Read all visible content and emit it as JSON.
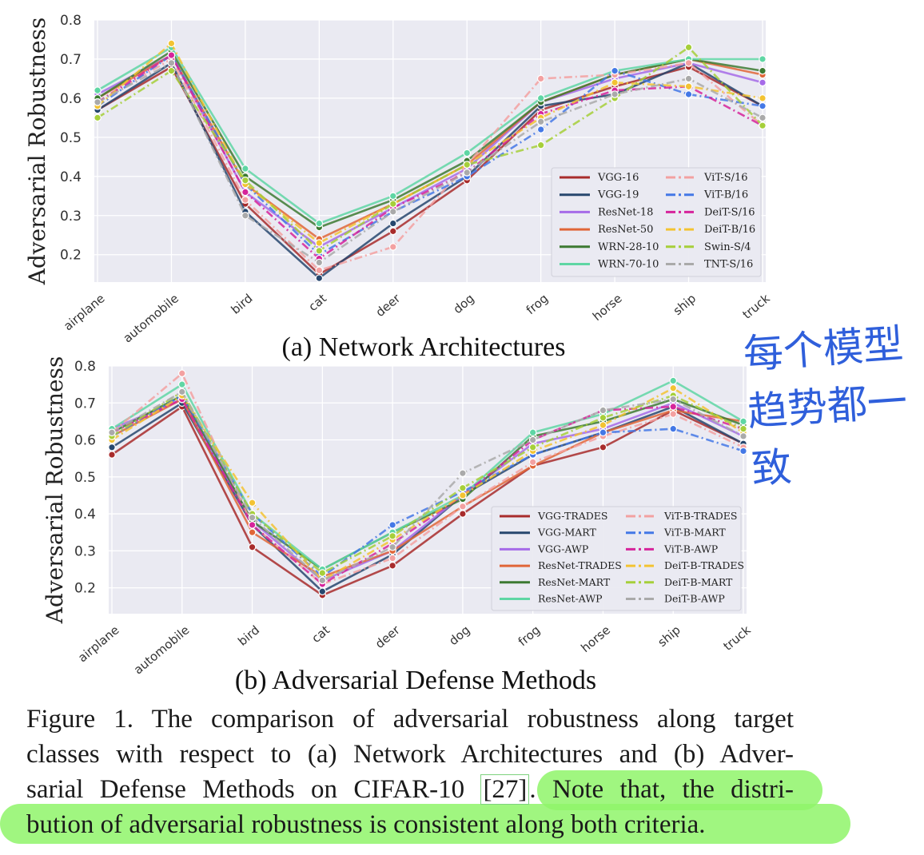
{
  "chart_data": [
    {
      "type": "line",
      "subcaption": "(a) Network Architectures",
      "ylabel": "Adversarial Robustness",
      "ylim": [
        0.13,
        0.8
      ],
      "yticks": [
        0.2,
        0.3,
        0.4,
        0.5,
        0.6,
        0.7,
        0.8
      ],
      "ytick_labels": [
        "0.2",
        "0.3",
        "0.4",
        "0.5",
        "0.6",
        "0.7",
        "0.8"
      ],
      "categories": [
        "airplane",
        "automobile",
        "bird",
        "cat",
        "deer",
        "dog",
        "frog",
        "horse",
        "ship",
        "truck"
      ],
      "legend_position": "lower-right",
      "series": [
        {
          "name": "VGG-16",
          "color": "#a82c2c",
          "dash": "solid",
          "values": [
            0.57,
            0.68,
            0.33,
            0.15,
            0.26,
            0.39,
            0.57,
            0.63,
            0.68,
            0.58
          ]
        },
        {
          "name": "VGG-19",
          "color": "#27476e",
          "dash": "solid",
          "values": [
            0.57,
            0.69,
            0.31,
            0.14,
            0.28,
            0.4,
            0.58,
            0.61,
            0.69,
            0.58
          ]
        },
        {
          "name": "ResNet-18",
          "color": "#a66be8",
          "dash": "solid",
          "values": [
            0.61,
            0.71,
            0.36,
            0.22,
            0.32,
            0.42,
            0.59,
            0.65,
            0.69,
            0.64
          ]
        },
        {
          "name": "ResNet-50",
          "color": "#e06638",
          "dash": "solid",
          "values": [
            0.6,
            0.71,
            0.38,
            0.24,
            0.33,
            0.43,
            0.59,
            0.66,
            0.7,
            0.66
          ]
        },
        {
          "name": "WRN-28-10",
          "color": "#3d7a32",
          "dash": "solid",
          "values": [
            0.6,
            0.72,
            0.4,
            0.27,
            0.34,
            0.44,
            0.59,
            0.66,
            0.7,
            0.67
          ]
        },
        {
          "name": "WRN-70-10",
          "color": "#5fd6a4",
          "dash": "solid",
          "values": [
            0.62,
            0.73,
            0.42,
            0.28,
            0.35,
            0.46,
            0.6,
            0.67,
            0.7,
            0.7
          ]
        },
        {
          "name": "ViT-S/16",
          "color": "#f3a1a1",
          "dash": "dashdot",
          "values": [
            0.59,
            0.7,
            0.34,
            0.16,
            0.22,
            0.43,
            0.65,
            0.66,
            0.69,
            0.53
          ]
        },
        {
          "name": "ViT-B/16",
          "color": "#4478e6",
          "dash": "dashdot",
          "values": [
            0.58,
            0.71,
            0.38,
            0.2,
            0.31,
            0.4,
            0.52,
            0.67,
            0.61,
            0.58
          ]
        },
        {
          "name": "DeiT-S/16",
          "color": "#d6249b",
          "dash": "dashdot",
          "values": [
            0.59,
            0.71,
            0.36,
            0.19,
            0.32,
            0.41,
            0.56,
            0.62,
            0.63,
            0.53
          ]
        },
        {
          "name": "DeiT-B/16",
          "color": "#f3c332",
          "dash": "dashdot",
          "values": [
            0.58,
            0.74,
            0.38,
            0.23,
            0.33,
            0.43,
            0.55,
            0.64,
            0.63,
            0.6
          ]
        },
        {
          "name": "Swin-S/4",
          "color": "#a6cf3a",
          "dash": "dashdot",
          "values": [
            0.55,
            0.67,
            0.39,
            0.21,
            0.33,
            0.43,
            0.48,
            0.6,
            0.73,
            0.53
          ]
        },
        {
          "name": "TNT-S/16",
          "color": "#aaaaaa",
          "dash": "dashdot",
          "values": [
            0.59,
            0.69,
            0.3,
            0.18,
            0.31,
            0.41,
            0.54,
            0.61,
            0.65,
            0.55
          ]
        }
      ]
    },
    {
      "type": "line",
      "subcaption": "(b) Adversarial Defense Methods",
      "ylabel": "Adversarial Robustness",
      "ylim": [
        0.13,
        0.8
      ],
      "yticks": [
        0.2,
        0.3,
        0.4,
        0.5,
        0.6,
        0.7,
        0.8
      ],
      "ytick_labels": [
        "0.2",
        "0.3",
        "0.4",
        "0.5",
        "0.6",
        "0.7",
        "0.8"
      ],
      "categories": [
        "airplane",
        "automobile",
        "bird",
        "cat",
        "deer",
        "dog",
        "frog",
        "horse",
        "ship",
        "truck"
      ],
      "legend_position": "lower-right",
      "series": [
        {
          "name": "VGG-TRADES",
          "color": "#a82c2c",
          "dash": "solid",
          "values": [
            0.56,
            0.69,
            0.31,
            0.18,
            0.26,
            0.4,
            0.53,
            0.58,
            0.68,
            0.59
          ]
        },
        {
          "name": "VGG-MART",
          "color": "#27476e",
          "dash": "solid",
          "values": [
            0.58,
            0.7,
            0.37,
            0.19,
            0.29,
            0.45,
            0.56,
            0.62,
            0.69,
            0.59
          ]
        },
        {
          "name": "VGG-AWP",
          "color": "#a66be8",
          "dash": "solid",
          "values": [
            0.63,
            0.71,
            0.38,
            0.22,
            0.3,
            0.45,
            0.59,
            0.63,
            0.7,
            0.61
          ]
        },
        {
          "name": "ResNet-TRADES",
          "color": "#e06638",
          "dash": "solid",
          "values": [
            0.61,
            0.71,
            0.35,
            0.23,
            0.3,
            0.42,
            0.53,
            0.62,
            0.68,
            0.65
          ]
        },
        {
          "name": "ResNet-MART",
          "color": "#3d7a32",
          "dash": "solid",
          "values": [
            0.62,
            0.72,
            0.38,
            0.25,
            0.35,
            0.44,
            0.61,
            0.65,
            0.71,
            0.64
          ]
        },
        {
          "name": "ResNet-AWP",
          "color": "#5fd6a4",
          "dash": "solid",
          "values": [
            0.63,
            0.75,
            0.4,
            0.25,
            0.35,
            0.45,
            0.62,
            0.67,
            0.76,
            0.65
          ]
        },
        {
          "name": "ViT-B-TRADES",
          "color": "#f3a1a1",
          "dash": "dashdot",
          "values": [
            0.62,
            0.78,
            0.37,
            0.21,
            0.28,
            0.42,
            0.54,
            0.61,
            0.67,
            0.58
          ]
        },
        {
          "name": "ViT-B-MART",
          "color": "#4478e6",
          "dash": "dashdot",
          "values": [
            0.61,
            0.72,
            0.4,
            0.23,
            0.37,
            0.46,
            0.56,
            0.62,
            0.63,
            0.57
          ]
        },
        {
          "name": "ViT-B-AWP",
          "color": "#d6249b",
          "dash": "dashdot",
          "values": [
            0.62,
            0.71,
            0.37,
            0.21,
            0.32,
            0.45,
            0.6,
            0.68,
            0.69,
            0.63
          ]
        },
        {
          "name": "DeiT-B-TRADES",
          "color": "#f3c332",
          "dash": "dashdot",
          "values": [
            0.6,
            0.72,
            0.43,
            0.22,
            0.33,
            0.45,
            0.57,
            0.64,
            0.74,
            0.62
          ]
        },
        {
          "name": "DeiT-B-MART",
          "color": "#a6cf3a",
          "dash": "dashdot",
          "values": [
            0.61,
            0.73,
            0.4,
            0.24,
            0.34,
            0.47,
            0.58,
            0.66,
            0.72,
            0.63
          ]
        },
        {
          "name": "DeiT-B-AWP",
          "color": "#aaaaaa",
          "dash": "dashdot",
          "values": [
            0.62,
            0.73,
            0.39,
            0.22,
            0.31,
            0.51,
            0.6,
            0.68,
            0.71,
            0.61
          ]
        }
      ]
    }
  ],
  "caption": {
    "line1": "Figure 1. The comparison of adversarial robustness along target",
    "line2": "classes with respect to (a) Network Architectures and (b) Adver-",
    "line3_prefix": "sarial Defense Methods on CIFAR-10 ",
    "line3_ref": "[27]",
    "line3_suffix": ". Note that, the distri-",
    "line4": "bution of adversarial robustness is consistent along both criteria."
  },
  "annotation": {
    "line1": "每个模型",
    "line2": "趋势都一致",
    "color": "#2f5fdb"
  }
}
